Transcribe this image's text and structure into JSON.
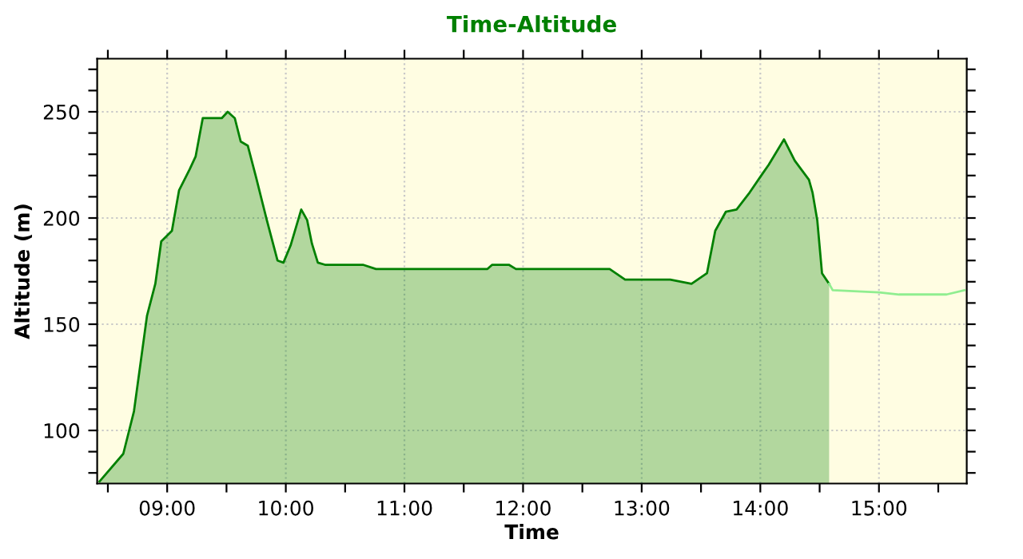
{
  "chart_data": {
    "type": "area",
    "title": "Time-Altitude",
    "xlabel": "Time",
    "ylabel": "Altitude (m)",
    "series": [
      {
        "color": "#008000",
        "x": [
          8.43,
          8.63,
          8.72,
          8.83,
          8.9,
          8.95,
          9.04,
          9.1,
          9.19,
          9.24,
          9.3,
          9.46,
          9.51,
          9.57,
          9.62,
          9.68,
          9.75,
          9.84,
          9.93,
          9.98,
          10.04,
          10.13,
          10.18,
          10.22,
          10.27,
          10.33,
          10.65,
          10.76,
          11.7,
          11.74,
          11.88,
          11.94,
          12.73,
          12.86,
          13.24,
          13.42,
          13.55,
          13.62,
          13.71,
          13.8,
          13.91,
          14.02,
          14.07,
          14.2,
          14.29,
          14.41,
          14.44,
          14.48,
          14.52,
          14.58
        ],
        "values": [
          76,
          89,
          109,
          154,
          169,
          189,
          194,
          213,
          223,
          229,
          247,
          247,
          250,
          247,
          236,
          234,
          219,
          199,
          180,
          179,
          187,
          204,
          199,
          188,
          179,
          178,
          178,
          176,
          176,
          178,
          178,
          176,
          176,
          171,
          171,
          169,
          174,
          194,
          203,
          204,
          212,
          221,
          225,
          237,
          227,
          218,
          212,
          199,
          174,
          169
        ]
      },
      {
        "type": "line",
        "color": "#90ee90",
        "x": [
          14.58,
          14.61,
          15.0,
          15.17,
          15.57,
          15.72
        ],
        "values": [
          169,
          166,
          165,
          164,
          164,
          166
        ]
      }
    ],
    "xlim": [
      8.41,
      15.74
    ],
    "xticks": [
      {
        "value": 8.5,
        "label": null
      },
      {
        "value": 9,
        "label": "09:00"
      },
      {
        "value": 9.5,
        "label": null
      },
      {
        "value": 10,
        "label": "10:00"
      },
      {
        "value": 10.5,
        "label": null
      },
      {
        "value": 11,
        "label": "11:00"
      },
      {
        "value": 11.5,
        "label": null
      },
      {
        "value": 12,
        "label": "12:00"
      },
      {
        "value": 12.5,
        "label": null
      },
      {
        "value": 13,
        "label": "13:00"
      },
      {
        "value": 13.5,
        "label": null
      },
      {
        "value": 14,
        "label": "14:00"
      },
      {
        "value": 14.5,
        "label": null
      },
      {
        "value": 15,
        "label": "15:00"
      },
      {
        "value": 15.5,
        "label": null
      }
    ],
    "ylim": [
      75,
      275
    ],
    "yticks": [
      {
        "value": 80,
        "label": null
      },
      {
        "value": 90,
        "label": null
      },
      100,
      {
        "value": 110,
        "label": null
      },
      {
        "value": 120,
        "label": null
      },
      {
        "value": 130,
        "label": null
      },
      {
        "value": 140,
        "label": null
      },
      150,
      {
        "value": 160,
        "label": null
      },
      {
        "value": 170,
        "label": null
      },
      {
        "value": 180,
        "label": null
      },
      {
        "value": 190,
        "label": null
      },
      200,
      {
        "value": 210,
        "label": null
      },
      {
        "value": 220,
        "label": null
      },
      {
        "value": 230,
        "label": null
      },
      {
        "value": 240,
        "label": null
      },
      250,
      {
        "value": 260,
        "label": null
      },
      {
        "value": 270,
        "label": null
      }
    ],
    "grid": true,
    "marker": "none",
    "line_style": "solid"
  }
}
